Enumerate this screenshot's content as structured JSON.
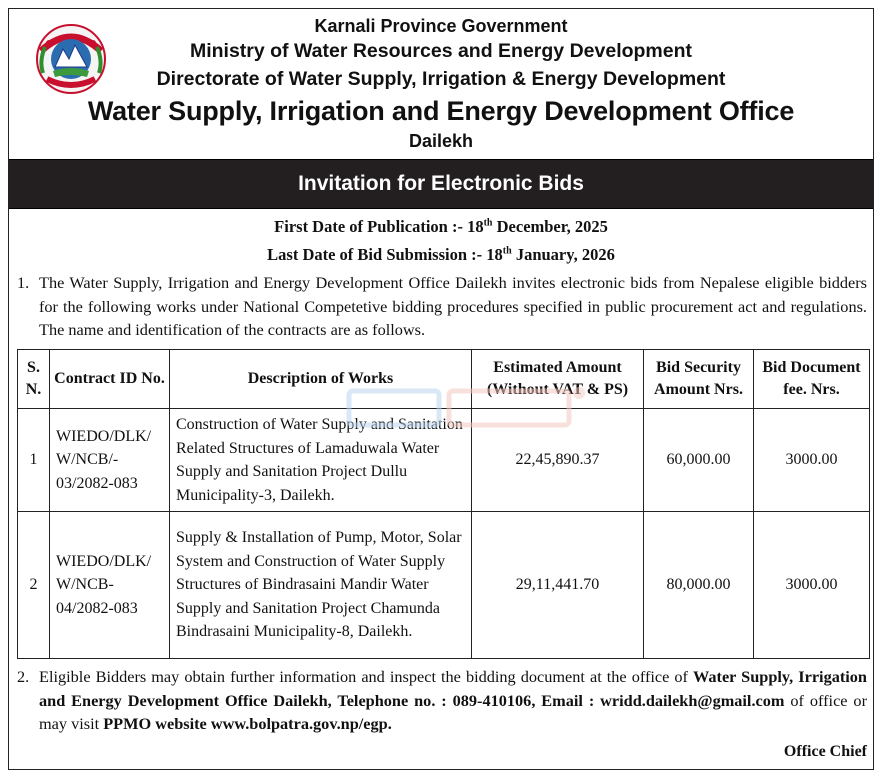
{
  "header": {
    "line1": "Karnali Province Government",
    "line2": "Ministry of Water Resources and Energy Development",
    "line3": "Directorate of Water Supply, Irrigation & Energy Development",
    "office": "Water Supply, Irrigation and Energy Development Office",
    "location": "Dailekh",
    "emblem_icon": "nepal-emblem-icon"
  },
  "banner": {
    "title": "Invitation for Electronic Bids"
  },
  "dates": {
    "publication_label": "First Date of Publication :- 18",
    "publication_sup": "th",
    "publication_rest": " December, 2025",
    "submission_label": "Last Date of Bid Submission :- 18",
    "submission_sup": "th",
    "submission_rest": " January, 2026"
  },
  "para1": {
    "number": "1.",
    "text": "The Water Supply, Irrigation and Energy Development Office Dailekh invites electronic bids from Nepalese eligible bidders for the following works under National Competetive bidding procedures specified in public procurement act and regulations. The name and identification of the contracts are as follows."
  },
  "table": {
    "headers": {
      "sn": "S. N.",
      "contract_id": "Contract ID No.",
      "description": "Description of  Works",
      "amount": "Estimated Amount (Without VAT & PS)",
      "security": "Bid Security Amount Nrs.",
      "fee": "Bid Document fee. Nrs."
    },
    "rows": [
      {
        "sn": "1",
        "contract_id": "WIEDO/DLK/ W/NCB/- 03/2082-083",
        "description": "Construction of  Water Supply and Sanitation Related Structures of Lamaduwala Water Supply and Sanitation Project Dullu Municipality-3, Dailekh.",
        "amount": "22,45,890.37",
        "security": "60,000.00",
        "fee": "3000.00"
      },
      {
        "sn": "2",
        "contract_id": "WIEDO/DLK/ W/NCB- 04/2082-083",
        "description": "Supply & Installation of Pump, Motor, Solar System and Construction of  Water Supply Structures of Bindrasaini Mandir Water Supply and Sanitation Project Chamunda Bindrasaini Municipality-8, Dailekh.",
        "amount": "29,11,441.70",
        "security": "80,000.00",
        "fee": "3000.00"
      }
    ]
  },
  "para2": {
    "number": "2.",
    "t1": "Eligible Bidders may obtain further information and inspect the bidding document at the office of ",
    "b1": "Water Supply, Irrigation and Energy Development Office Dailekh, Telephone no. : 089-410106, Email : wridd.dailekh@gmail.com",
    "t2": " of office or may visit ",
    "b2": "PPMO website www.bolpatra.gov.np/egp."
  },
  "signature": "Office Chief"
}
